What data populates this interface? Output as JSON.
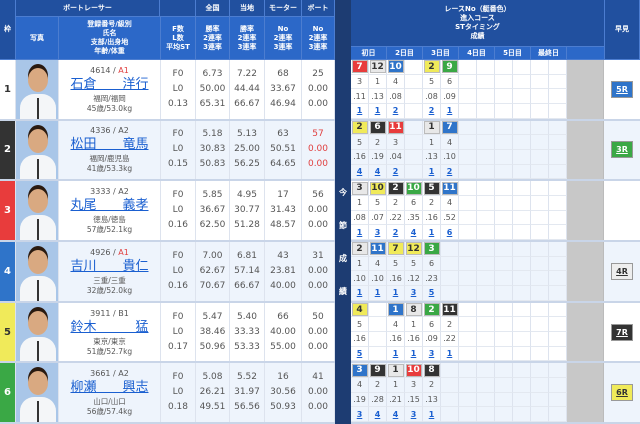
{
  "header": {
    "waku": "枠",
    "racer": "ボートレーサー",
    "photo": "写真",
    "reg": "登録番号/級別\n氏名\n支部/出身地\n年齢/体重",
    "fl": "F数\nL数\n平均ST",
    "national": "全国",
    "local": "当地",
    "motor": "モーター",
    "boat": "ボート",
    "national_sub": "勝率\n2連率\n3連率",
    "local_sub": "勝率\n2連率\n3連率",
    "motor_sub": "No\n2連率\n3連率",
    "boat_sub": "No\n2連率\n3連率",
    "race_info": "レースNo（艇番色）\n進入コース\nSTタイミング\n成績",
    "days": [
      "初日",
      "2日目",
      "3日目",
      "4日目",
      "5日目",
      "最終日"
    ],
    "hayami": "早見",
    "band": [
      "今",
      "節",
      "成",
      "績"
    ]
  },
  "colors": {
    "waku_bg": [
      "#ffffff",
      "#333333",
      "#e83c3c",
      "#2f74c9",
      "#f0ea5a",
      "#3aa845"
    ],
    "waku_fg": [
      "#333333",
      "#ffffff",
      "#ffffff",
      "#ffffff",
      "#333333",
      "#ffffff"
    ],
    "accent": "#21509f",
    "class_a1": "#e04040"
  },
  "racers": [
    {
      "waku": "1",
      "reg": "4614",
      "cls": "A1",
      "name": "石倉　　洋行",
      "branch": "福岡/福岡",
      "age": "45歳/53.0kg",
      "fl": [
        "F0",
        "L0",
        "0.13"
      ],
      "national": [
        "6.73",
        "50.00",
        "65.31"
      ],
      "local": [
        "7.22",
        "44.44",
        "66.67"
      ],
      "motor": [
        "68",
        "33.67",
        "46.94"
      ],
      "boat": [
        "25",
        "0.00",
        "0.00"
      ],
      "boat_red": false,
      "races": [
        {
          "r": "7",
          "c": 3,
          "st": ".11",
          "rk": "1"
        },
        {
          "r": "12",
          "c": 1,
          "st": ".13",
          "rk": "1"
        },
        {
          "r": "10",
          "c": 4,
          "st": ".08",
          "rk": "2"
        },
        null,
        {
          "r": "2",
          "c": 5,
          "st": ".08",
          "rk": "2"
        },
        {
          "r": "9",
          "c": 6,
          "st": ".09",
          "rk": "1"
        },
        null,
        null,
        null,
        null,
        null,
        null
      ],
      "hayami": {
        "label": "5R",
        "c": 4
      }
    },
    {
      "waku": "2",
      "reg": "4336",
      "cls": "A2",
      "name": "松田　　竜馬",
      "branch": "福岡/鹿児島",
      "age": "41歳/53.3kg",
      "fl": [
        "F0",
        "L0",
        "0.15"
      ],
      "national": [
        "5.18",
        "30.83",
        "50.83"
      ],
      "local": [
        "5.13",
        "25.00",
        "56.25"
      ],
      "motor": [
        "63",
        "50.51",
        "64.65"
      ],
      "boat": [
        "57",
        "0.00",
        "0.00"
      ],
      "boat_red": true,
      "races": [
        {
          "r": "2",
          "c": 5,
          "st": ".16",
          "rk": "4"
        },
        {
          "r": "6",
          "c": 2,
          "st": ".19",
          "rk": "4"
        },
        {
          "r": "11",
          "c": 3,
          "st": ".04",
          "rk": "2"
        },
        null,
        {
          "r": "1",
          "c": 1,
          "st": ".13",
          "rk": "1"
        },
        {
          "r": "7",
          "c": 4,
          "st": ".10",
          "rk": "2"
        },
        null,
        null,
        null,
        null,
        null,
        null
      ],
      "hayami": {
        "label": "3R",
        "c": 6
      }
    },
    {
      "waku": "3",
      "reg": "3333",
      "cls": "A2",
      "name": "丸尾　　義孝",
      "branch": "徳島/徳島",
      "age": "57歳/52.1kg",
      "fl": [
        "F0",
        "L0",
        "0.16"
      ],
      "national": [
        "5.85",
        "36.67",
        "62.50"
      ],
      "local": [
        "4.95",
        "30.77",
        "51.28"
      ],
      "motor": [
        "17",
        "31.43",
        "48.57"
      ],
      "boat": [
        "56",
        "0.00",
        "0.00"
      ],
      "boat_red": false,
      "races": [
        {
          "r": "3",
          "c": 1,
          "st": ".08",
          "rk": "1"
        },
        {
          "r": "10",
          "c": 5,
          "st": ".07",
          "rk": "3"
        },
        {
          "r": "2",
          "c": 2,
          "st": ".22",
          "rk": "2"
        },
        {
          "r": "10",
          "c": 6,
          "st": ".35",
          "rk": "4"
        },
        {
          "r": "5",
          "c": 2,
          "st": ".16",
          "rk": "1"
        },
        {
          "r": "11",
          "c": 4,
          "st": ".52",
          "rk": "6"
        },
        null,
        null,
        null,
        null,
        null,
        null
      ],
      "hayami": null
    },
    {
      "waku": "4",
      "reg": "4926",
      "cls": "A1",
      "name": "吉川　　貴仁",
      "branch": "三重/三重",
      "age": "32歳/52.0kg",
      "fl": [
        "F0",
        "L0",
        "0.16"
      ],
      "national": [
        "7.00",
        "62.67",
        "70.67"
      ],
      "local": [
        "6.81",
        "57.14",
        "66.67"
      ],
      "motor": [
        "43",
        "23.81",
        "40.00"
      ],
      "boat": [
        "31",
        "0.00",
        "0.00"
      ],
      "boat_red": false,
      "races": [
        {
          "r": "2",
          "c": 1,
          "st": ".10",
          "rk": "1"
        },
        {
          "r": "11",
          "c": 4,
          "st": ".10",
          "rk": "1"
        },
        {
          "r": "7",
          "c": 5,
          "st": ".16",
          "rk": "1"
        },
        {
          "r": "12",
          "c": 5,
          "st": ".12",
          "rk": "3"
        },
        {
          "r": "3",
          "c": 6,
          "st": ".23",
          "rk": "5"
        },
        null,
        null,
        null,
        null,
        null,
        null,
        null
      ],
      "hayami": {
        "label": "4R",
        "c": 1
      }
    },
    {
      "waku": "5",
      "reg": "3911",
      "cls": "B1",
      "name": "鈴木　　　猛",
      "branch": "東京/東京",
      "age": "51歳/52.7kg",
      "fl": [
        "F0",
        "L0",
        "0.17"
      ],
      "national": [
        "5.47",
        "38.46",
        "50.96"
      ],
      "local": [
        "5.40",
        "33.33",
        "53.33"
      ],
      "motor": [
        "66",
        "40.00",
        "55.00"
      ],
      "boat": [
        "50",
        "0.00",
        "0.00"
      ],
      "boat_red": false,
      "races": [
        {
          "r": "4",
          "c": 5,
          "st": ".16",
          "rk": "5"
        },
        null,
        {
          "r": "1",
          "c": 4,
          "st": ".16",
          "rk": "1"
        },
        {
          "r": "8",
          "c": 1,
          "st": ".16",
          "rk": "1"
        },
        {
          "r": "2",
          "c": 6,
          "st": ".09",
          "rk": "3"
        },
        {
          "r": "11",
          "c": 2,
          "st": ".22",
          "rk": "1"
        },
        null,
        null,
        null,
        null,
        null,
        null
      ],
      "hayami": {
        "label": "7R",
        "c": 2
      }
    },
    {
      "waku": "6",
      "reg": "3661",
      "cls": "A2",
      "name": "柳瀬　　興志",
      "branch": "山口/山口",
      "age": "56歳/57.4kg",
      "fl": [
        "F0",
        "L0",
        "0.18"
      ],
      "national": [
        "5.08",
        "26.21",
        "49.51"
      ],
      "local": [
        "5.52",
        "31.97",
        "56.56"
      ],
      "motor": [
        "16",
        "30.56",
        "50.93"
      ],
      "boat": [
        "41",
        "0.00",
        "0.00"
      ],
      "boat_red": false,
      "races": [
        {
          "r": "3",
          "c": 4,
          "st": ".19",
          "rk": "3"
        },
        {
          "r": "9",
          "c": 2,
          "st": ".28",
          "rk": "4"
        },
        {
          "r": "1",
          "c": 1,
          "st": ".21",
          "rk": "4"
        },
        {
          "r": "10",
          "c": 3,
          "st": ".15",
          "rk": "3"
        },
        {
          "r": "8",
          "c": 2,
          "st": ".13",
          "rk": "1"
        },
        null,
        null,
        null,
        null,
        null,
        null,
        null
      ],
      "hayami": {
        "label": "6R",
        "c": 5
      }
    }
  ]
}
